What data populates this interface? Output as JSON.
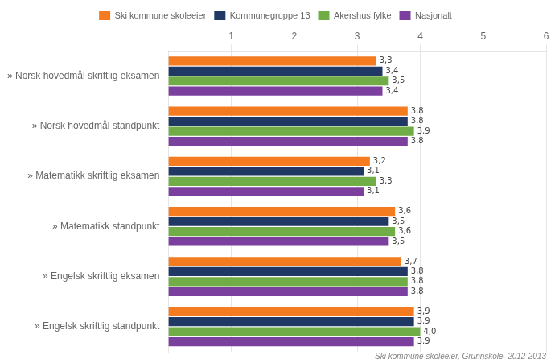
{
  "chart_data": {
    "type": "bar",
    "orientation": "horizontal",
    "categories": [
      "» Norsk hovedmål skriftlig eksamen",
      "» Norsk hovedmål standpunkt",
      "» Matematikk skriftlig eksamen",
      "» Matematikk standpunkt",
      "» Engelsk skriftlig eksamen",
      "» Engelsk skriftlig standpunkt"
    ],
    "series": [
      {
        "name": "Ski kommune skoleeier",
        "color": "#F47B20",
        "values": [
          3.3,
          3.8,
          3.2,
          3.6,
          3.7,
          3.9
        ],
        "value_labels": [
          "3,3",
          "3,8",
          "3,2",
          "3,6",
          "3,7",
          "3,9"
        ]
      },
      {
        "name": "Kommunegruppe 13",
        "color": "#1F3864",
        "values": [
          3.4,
          3.8,
          3.1,
          3.5,
          3.8,
          3.9
        ],
        "value_labels": [
          "3,4",
          "3,8",
          "3,1",
          "3,5",
          "3,8",
          "3,9"
        ]
      },
      {
        "name": "Akershus fylke",
        "color": "#70AD47",
        "values": [
          3.5,
          3.9,
          3.3,
          3.6,
          3.8,
          4.0
        ],
        "value_labels": [
          "3,5",
          "3,9",
          "3,3",
          "3,6",
          "3,8",
          "4,0"
        ]
      },
      {
        "name": "Nasjonalt",
        "color": "#7B3F9E",
        "values": [
          3.4,
          3.8,
          3.1,
          3.5,
          3.8,
          3.9
        ],
        "value_labels": [
          "3,4",
          "3,8",
          "3,1",
          "3,5",
          "3,8",
          "3,9"
        ]
      }
    ],
    "xlim": [
      0,
      6
    ],
    "xticks": [
      1,
      2,
      3,
      4,
      5,
      6
    ],
    "grid": true,
    "legend": "top",
    "data_labels": true,
    "annotations": [
      "Ski kommune skoleeier, Grunnskole, 2012-2013"
    ]
  }
}
